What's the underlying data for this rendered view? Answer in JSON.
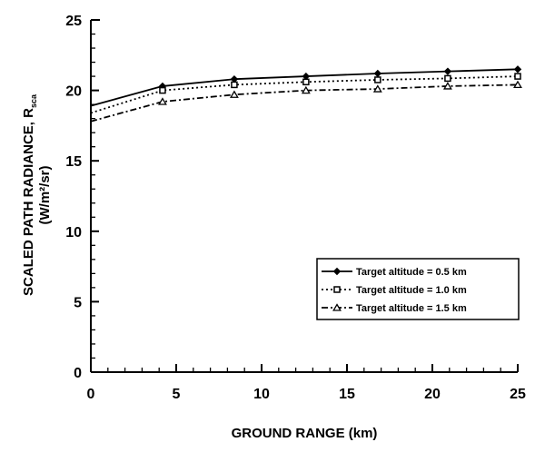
{
  "chart_data": {
    "type": "line",
    "xlabel": "GROUND RANGE (km)",
    "ylabel_line1": "SCALED PATH RADIANCE, R",
    "ylabel_subscript": "sca",
    "ylabel_line2": "(W/m²/sr)",
    "xlim": [
      0,
      25
    ],
    "ylim": [
      0,
      25
    ],
    "xticks": [
      "0",
      "5",
      "10",
      "15",
      "20",
      "25"
    ],
    "yticks": [
      "0",
      "5",
      "10",
      "15",
      "20",
      "25"
    ],
    "grid": false,
    "legend_position": "bottom-right",
    "x": [
      0,
      4.2,
      8.4,
      12.6,
      16.8,
      20.9,
      25
    ],
    "series": [
      {
        "name": "Target altitude = 0.5 km",
        "marker": "diamond",
        "linestyle": "solid",
        "values": [
          18.9,
          20.3,
          20.8,
          21.0,
          21.2,
          21.35,
          21.5
        ]
      },
      {
        "name": "Target altitude = 1.0 km",
        "marker": "square",
        "linestyle": "dotted",
        "values": [
          18.4,
          20.0,
          20.4,
          20.6,
          20.75,
          20.85,
          21.0
        ]
      },
      {
        "name": "Target altitude = 1.5 km",
        "marker": "triangle",
        "linestyle": "dashdot",
        "values": [
          17.8,
          19.2,
          19.7,
          20.0,
          20.1,
          20.3,
          20.4
        ]
      }
    ]
  }
}
